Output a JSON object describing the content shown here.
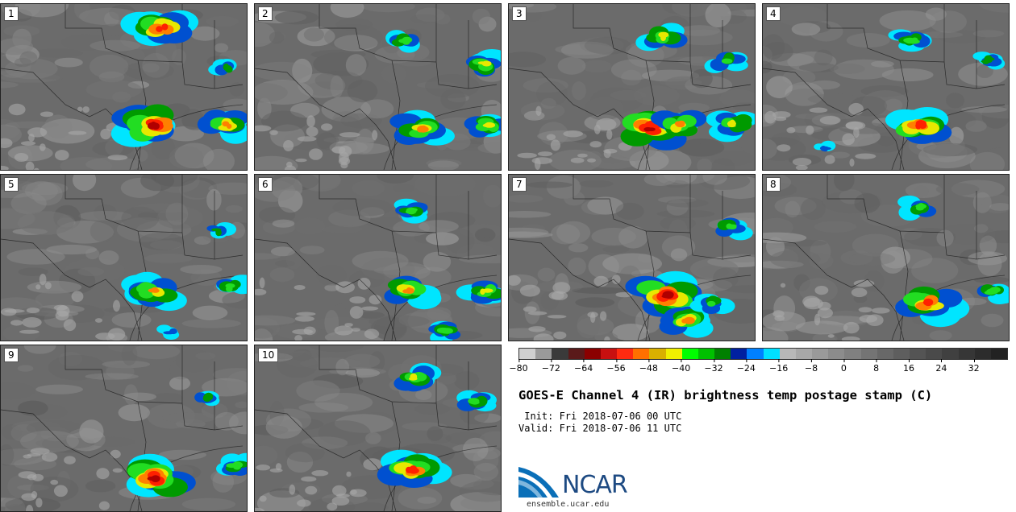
{
  "panels": [
    {
      "label": "1"
    },
    {
      "label": "2"
    },
    {
      "label": "3"
    },
    {
      "label": "4"
    },
    {
      "label": "5"
    },
    {
      "label": "6"
    },
    {
      "label": "7"
    },
    {
      "label": "8"
    },
    {
      "label": "9"
    },
    {
      "label": "10"
    }
  ],
  "colorbar": {
    "colors": [
      "#cfcfcf",
      "#9a9a9a",
      "#3a3a3a",
      "#5a1a1a",
      "#8b0000",
      "#c81010",
      "#ff2a10",
      "#ff7000",
      "#d9b000",
      "#f0f000",
      "#00ff00",
      "#00c000",
      "#008000",
      "#0020a0",
      "#0080ff",
      "#00e0ff",
      "#b8b8b8",
      "#a8a8a8",
      "#9a9a9a",
      "#8c8c8c",
      "#808080",
      "#747474",
      "#686868",
      "#5e5e5e",
      "#545454",
      "#4a4a4a",
      "#404040",
      "#363636",
      "#2c2c2c",
      "#222222"
    ],
    "ticks": [
      "−80",
      "−72",
      "−64",
      "−56",
      "−48",
      "−40",
      "−32",
      "−24",
      "−16",
      "−8",
      "0",
      "8",
      "16",
      "24",
      "32"
    ]
  },
  "title": "GOES-E Channel 4 (IR) brightness temp postage stamp (C)",
  "init": " Init: Fri 2018-07-06 00 UTC",
  "valid": "Valid: Fri 2018-07-06 11 UTC",
  "logo_text": "NCAR",
  "url": "ensemble.ucar.edu"
}
